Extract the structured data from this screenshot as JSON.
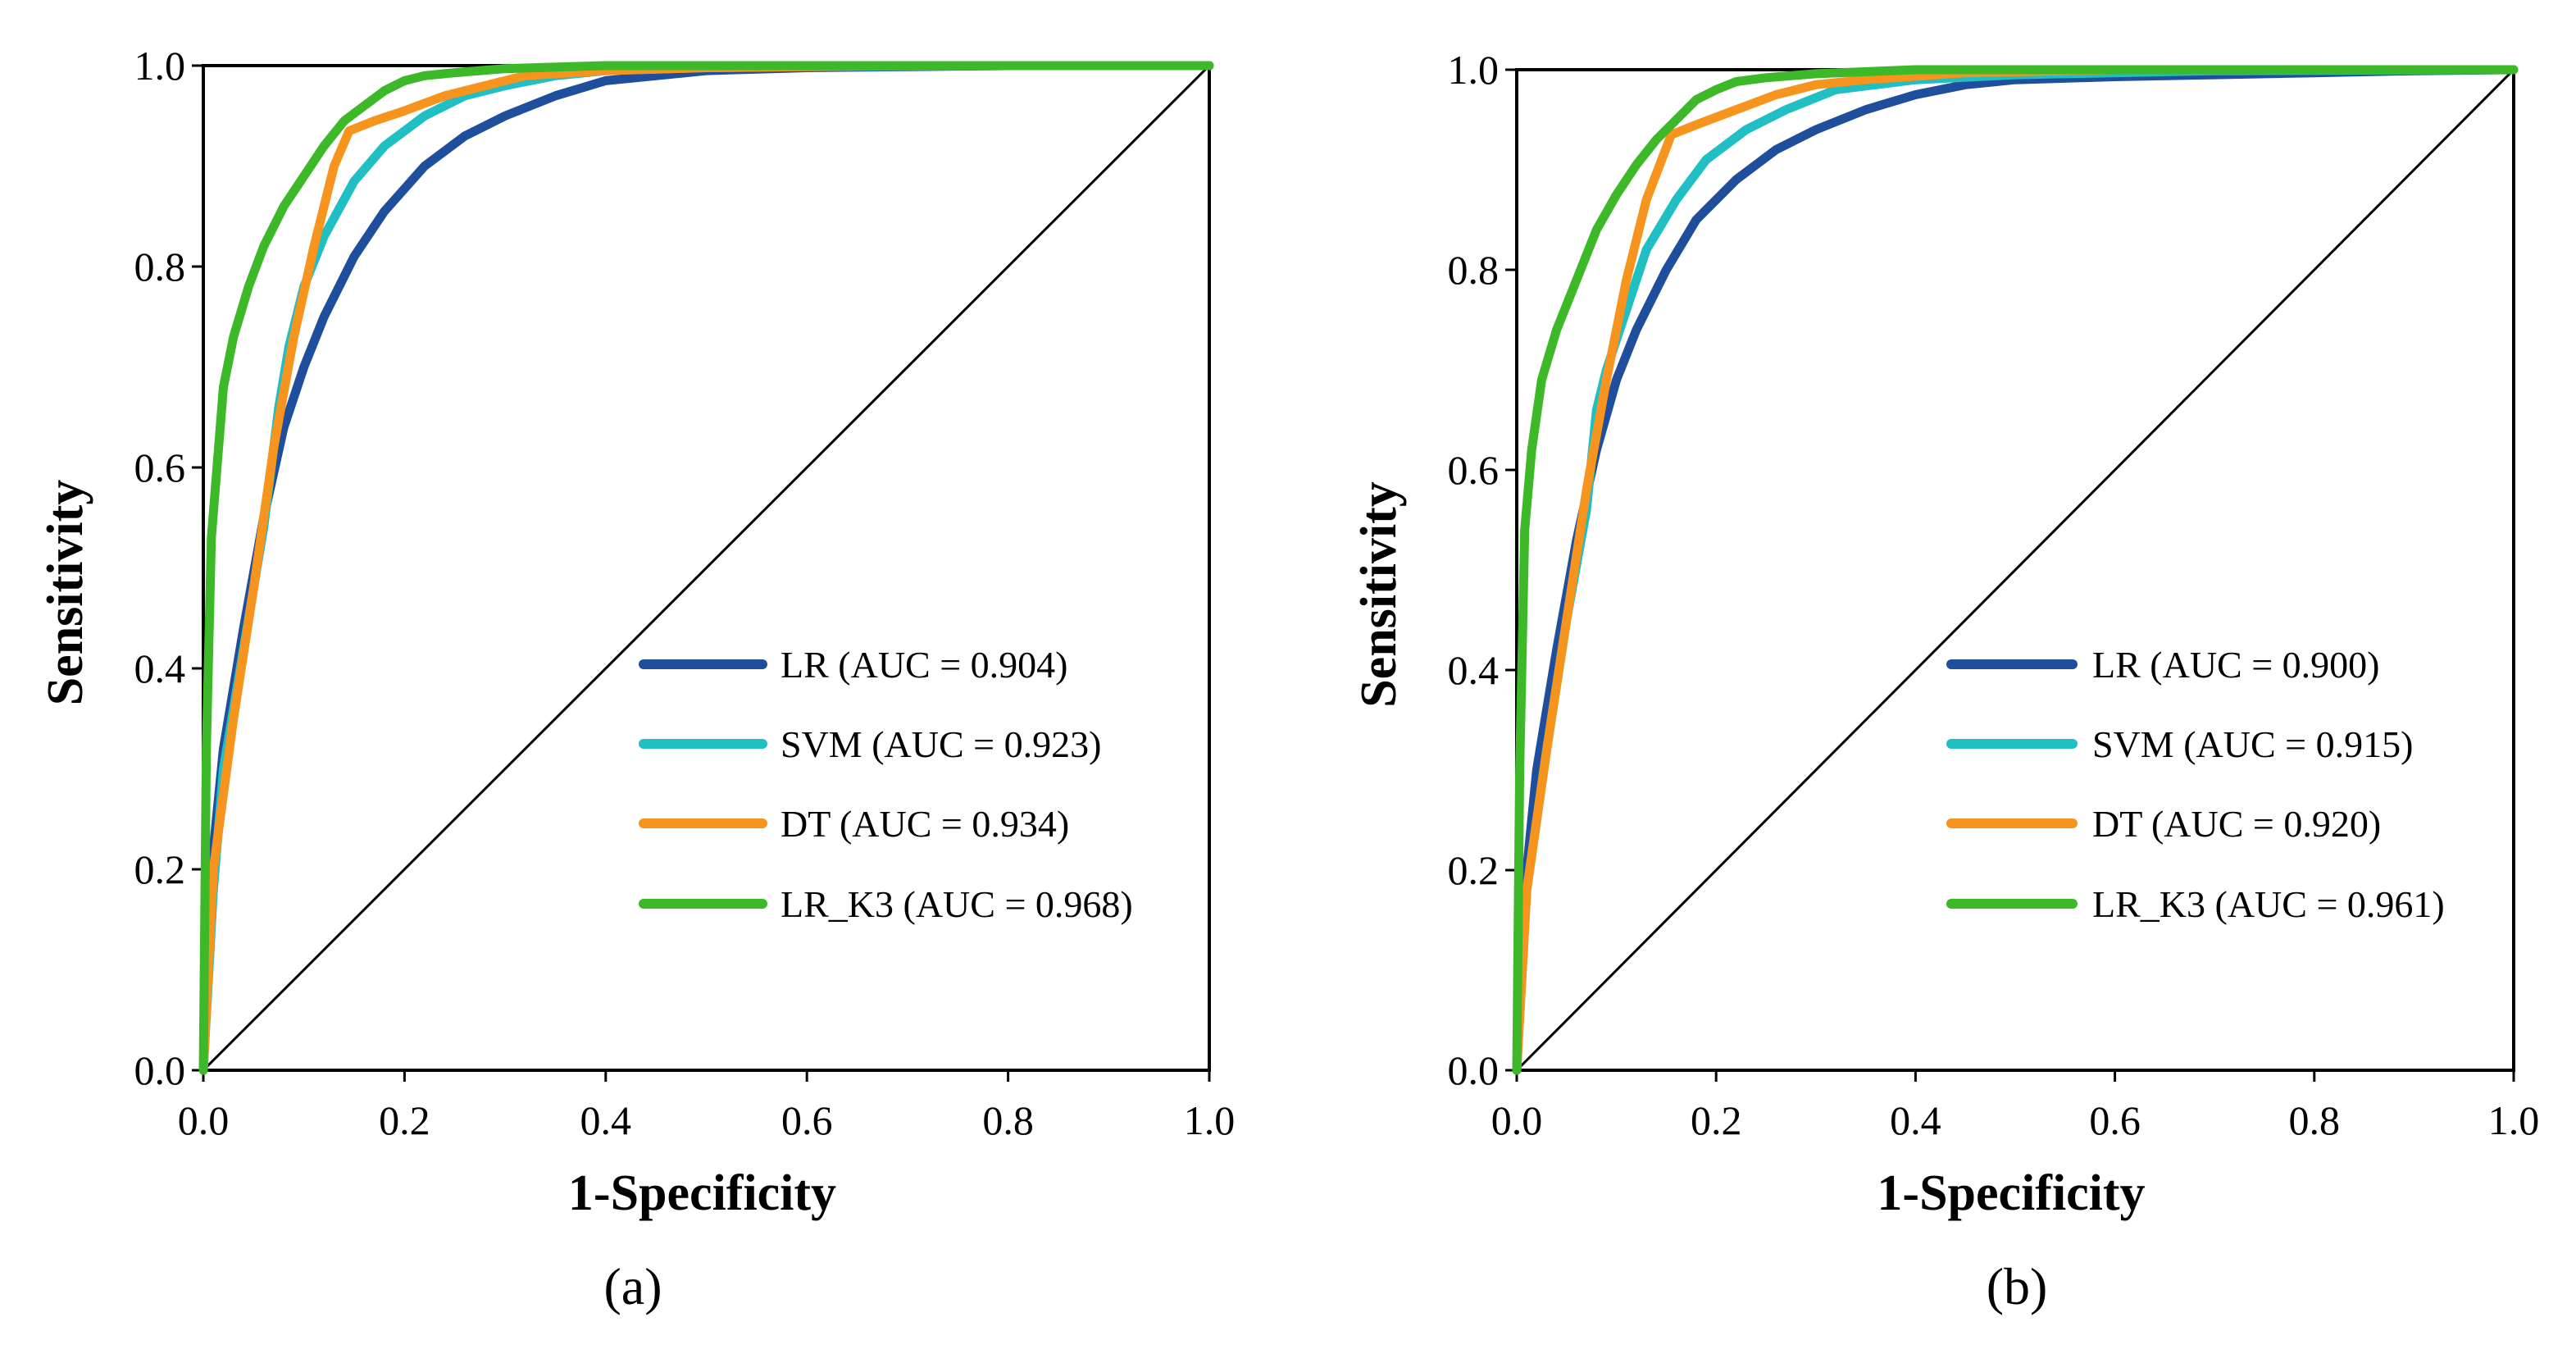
{
  "chart_data": [
    {
      "type": "line",
      "panel_label": "(a)",
      "xlabel": "1-Specificity",
      "ylabel": "Sensitivity",
      "xlim": [
        0,
        1
      ],
      "ylim": [
        0,
        1
      ],
      "x_ticks": [
        "0.0",
        "0.2",
        "0.4",
        "0.6",
        "0.8",
        "1.0"
      ],
      "y_ticks": [
        "0.0",
        "0.2",
        "0.4",
        "0.6",
        "0.8",
        "1.0"
      ],
      "grid": false,
      "legend_position": "lower-right",
      "reference_line": {
        "x": [
          0,
          1
        ],
        "y": [
          0,
          1
        ],
        "color": "#000000"
      },
      "series": [
        {
          "name": "LR",
          "label": "LR (AUC = 0.904)",
          "auc": 0.904,
          "color": "#1f4e9c",
          "x": [
            0,
            0.01,
            0.02,
            0.04,
            0.06,
            0.08,
            0.1,
            0.12,
            0.15,
            0.18,
            0.22,
            0.26,
            0.3,
            0.35,
            0.4,
            0.45,
            0.5,
            0.6,
            0.7,
            0.8,
            0.9,
            1.0
          ],
          "y": [
            0,
            0.22,
            0.32,
            0.44,
            0.55,
            0.64,
            0.7,
            0.75,
            0.81,
            0.855,
            0.9,
            0.93,
            0.95,
            0.97,
            0.985,
            0.99,
            0.995,
            0.998,
            0.999,
            1.0,
            1.0,
            1.0
          ]
        },
        {
          "name": "SVM",
          "label": "SVM (AUC = 0.923)",
          "auc": 0.923,
          "color": "#1fbfc4",
          "x": [
            0,
            0.01,
            0.02,
            0.04,
            0.06,
            0.075,
            0.085,
            0.1,
            0.12,
            0.15,
            0.18,
            0.22,
            0.26,
            0.3,
            0.35,
            0.4,
            0.5,
            0.6,
            0.8,
            1.0
          ],
          "y": [
            0,
            0.18,
            0.3,
            0.42,
            0.54,
            0.66,
            0.72,
            0.78,
            0.83,
            0.885,
            0.92,
            0.95,
            0.97,
            0.98,
            0.99,
            0.995,
            0.998,
            0.999,
            1.0,
            1.0
          ]
        },
        {
          "name": "DT",
          "label": "DT (AUC = 0.934)",
          "auc": 0.934,
          "color": "#f7941d",
          "x": [
            0,
            0.01,
            0.03,
            0.05,
            0.07,
            0.09,
            0.11,
            0.13,
            0.145,
            0.17,
            0.2,
            0.24,
            0.28,
            0.32,
            0.4,
            0.5,
            0.7,
            1.0
          ],
          "y": [
            0,
            0.2,
            0.35,
            0.48,
            0.62,
            0.73,
            0.82,
            0.9,
            0.935,
            0.945,
            0.955,
            0.97,
            0.98,
            0.99,
            0.995,
            0.998,
            1.0,
            1.0
          ]
        },
        {
          "name": "LR_K3",
          "label": "LR_K3 (AUC = 0.968)",
          "auc": 0.968,
          "color": "#3cb829",
          "x": [
            0,
            0.003,
            0.008,
            0.012,
            0.02,
            0.03,
            0.045,
            0.06,
            0.08,
            0.1,
            0.12,
            0.14,
            0.16,
            0.18,
            0.2,
            0.22,
            0.25,
            0.3,
            0.4,
            0.5,
            1.0
          ],
          "y": [
            0,
            0.32,
            0.53,
            0.58,
            0.68,
            0.73,
            0.78,
            0.82,
            0.86,
            0.89,
            0.92,
            0.945,
            0.96,
            0.975,
            0.985,
            0.99,
            0.993,
            0.997,
            1.0,
            1.0,
            1.0
          ]
        }
      ]
    },
    {
      "type": "line",
      "panel_label": "(b)",
      "xlabel": "1-Specificity",
      "ylabel": "Sensitivity",
      "xlim": [
        0,
        1
      ],
      "ylim": [
        0,
        1
      ],
      "x_ticks": [
        "0.0",
        "0.2",
        "0.4",
        "0.6",
        "0.8",
        "1.0"
      ],
      "y_ticks": [
        "0.0",
        "0.2",
        "0.4",
        "0.6",
        "0.8",
        "1.0"
      ],
      "grid": false,
      "legend_position": "lower-right",
      "reference_line": {
        "x": [
          0,
          1
        ],
        "y": [
          0,
          1
        ],
        "color": "#000000"
      },
      "series": [
        {
          "name": "LR",
          "label": "LR (AUC = 0.900)",
          "auc": 0.9,
          "color": "#1f4e9c",
          "x": [
            0,
            0.01,
            0.02,
            0.04,
            0.06,
            0.08,
            0.1,
            0.12,
            0.15,
            0.18,
            0.22,
            0.26,
            0.3,
            0.35,
            0.4,
            0.45,
            0.5,
            0.6,
            0.7,
            0.8,
            0.9,
            1.0
          ],
          "y": [
            0,
            0.2,
            0.3,
            0.42,
            0.53,
            0.62,
            0.69,
            0.74,
            0.8,
            0.85,
            0.89,
            0.92,
            0.94,
            0.96,
            0.975,
            0.985,
            0.99,
            0.993,
            0.995,
            0.997,
            0.999,
            1.0
          ]
        },
        {
          "name": "SVM",
          "label": "SVM (AUC = 0.915)",
          "auc": 0.915,
          "color": "#1fbfc4",
          "x": [
            0,
            0.01,
            0.03,
            0.05,
            0.07,
            0.08,
            0.09,
            0.11,
            0.13,
            0.16,
            0.19,
            0.23,
            0.27,
            0.32,
            0.4,
            0.5,
            0.7,
            1.0
          ],
          "y": [
            0,
            0.18,
            0.32,
            0.45,
            0.56,
            0.66,
            0.7,
            0.76,
            0.82,
            0.87,
            0.91,
            0.94,
            0.96,
            0.98,
            0.99,
            0.995,
            0.999,
            1.0
          ]
        },
        {
          "name": "DT",
          "label": "DT (AUC = 0.920)",
          "auc": 0.92,
          "color": "#f7941d",
          "x": [
            0,
            0.01,
            0.03,
            0.05,
            0.07,
            0.09,
            0.11,
            0.13,
            0.155,
            0.18,
            0.22,
            0.26,
            0.3,
            0.35,
            0.45,
            0.6,
            1.0
          ],
          "y": [
            0,
            0.18,
            0.32,
            0.45,
            0.58,
            0.69,
            0.79,
            0.87,
            0.935,
            0.945,
            0.96,
            0.975,
            0.985,
            0.99,
            0.997,
            1.0,
            1.0
          ]
        },
        {
          "name": "LR_K3",
          "label": "LR_K3 (AUC = 0.961)",
          "auc": 0.961,
          "color": "#3cb829",
          "x": [
            0,
            0.003,
            0.008,
            0.015,
            0.025,
            0.04,
            0.06,
            0.08,
            0.1,
            0.12,
            0.14,
            0.16,
            0.18,
            0.2,
            0.22,
            0.25,
            0.3,
            0.4,
            0.5,
            1.0
          ],
          "y": [
            0,
            0.3,
            0.54,
            0.62,
            0.69,
            0.74,
            0.79,
            0.84,
            0.875,
            0.905,
            0.93,
            0.95,
            0.97,
            0.98,
            0.988,
            0.992,
            0.996,
            1.0,
            1.0,
            1.0
          ]
        }
      ]
    }
  ]
}
